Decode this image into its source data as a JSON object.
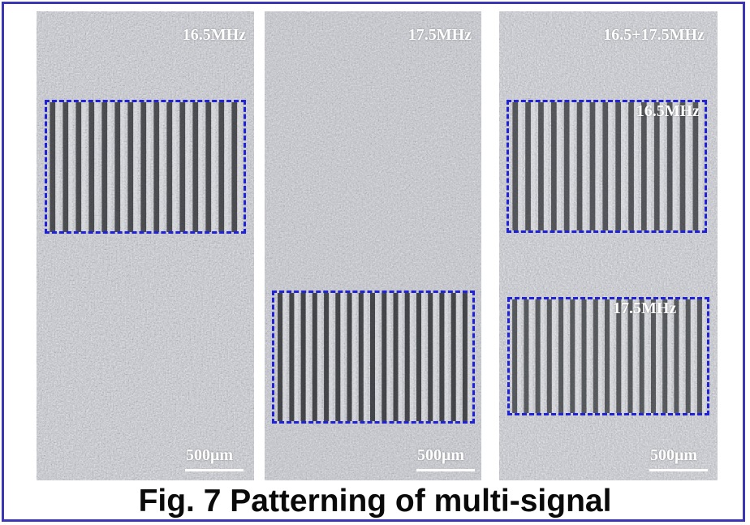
{
  "panels": [
    {
      "freq_label": "16.5MHz",
      "box_labels": [],
      "scale_label": "500μm"
    },
    {
      "freq_label": "17.5MHz",
      "box_labels": [],
      "scale_label": "500μm"
    },
    {
      "freq_label": "16.5+17.5MHz",
      "box_labels": [
        "16.5MHz",
        "17.5MHz"
      ],
      "scale_label": "500μm"
    }
  ],
  "caption": "Fig. 7 Patterning of multi-signal",
  "colors": {
    "frame": "#3b36b4",
    "dashed_box": "#1f22d6",
    "caption_text": "#0a0a0a"
  }
}
